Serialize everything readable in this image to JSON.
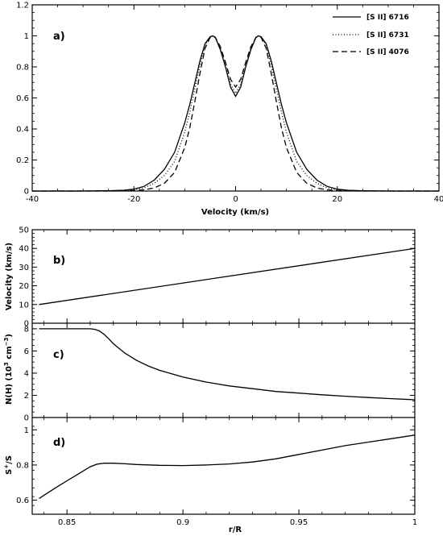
{
  "chart_data": [
    {
      "id": "a",
      "type": "line",
      "panel_label": "a)",
      "xlabel": "Velocity (km/s)",
      "ylabel": "",
      "xlim": [
        -40,
        40
      ],
      "ylim": [
        0,
        1.2
      ],
      "xticks": [
        "-40",
        "-20",
        "0",
        "20",
        "40"
      ],
      "yticks": [
        "0",
        "0.2",
        "0.4",
        "0.6",
        "0.8",
        "1",
        "1.2"
      ],
      "legend_position": "top-right",
      "series": [
        {
          "name": "[S II] 6716",
          "style": "solid",
          "x": [
            -40,
            -30,
            -25,
            -22,
            -20,
            -18,
            -16,
            -14,
            -12,
            -10,
            -9,
            -8,
            -7,
            -6,
            -5,
            -4.5,
            -4,
            -3,
            -2,
            -1,
            0,
            1,
            2,
            3,
            4,
            4.5,
            5,
            6,
            7,
            8,
            9,
            10,
            12,
            14,
            16,
            18,
            20,
            22,
            25,
            30,
            40
          ],
          "y": [
            0,
            0,
            0.002,
            0.005,
            0.012,
            0.03,
            0.07,
            0.14,
            0.25,
            0.44,
            0.56,
            0.7,
            0.84,
            0.95,
            0.995,
            1.0,
            0.99,
            0.91,
            0.8,
            0.67,
            0.61,
            0.67,
            0.8,
            0.91,
            0.99,
            1.0,
            0.995,
            0.95,
            0.84,
            0.7,
            0.56,
            0.44,
            0.25,
            0.14,
            0.07,
            0.03,
            0.012,
            0.005,
            0.002,
            0,
            0
          ]
        },
        {
          "name": "[S II] 6731",
          "style": "dotted",
          "x": [
            -40,
            -30,
            -25,
            -22,
            -20,
            -18,
            -16,
            -14,
            -12,
            -10,
            -9,
            -8,
            -7,
            -6,
            -5,
            -4.5,
            -4,
            -3,
            -2,
            -1,
            0,
            1,
            2,
            3,
            4,
            4.5,
            5,
            6,
            7,
            8,
            9,
            10,
            12,
            14,
            16,
            18,
            20,
            22,
            25,
            30,
            40
          ],
          "y": [
            0,
            0,
            0.001,
            0.003,
            0.008,
            0.02,
            0.05,
            0.1,
            0.19,
            0.38,
            0.51,
            0.66,
            0.81,
            0.94,
            0.99,
            1.0,
            0.99,
            0.92,
            0.81,
            0.69,
            0.63,
            0.69,
            0.81,
            0.92,
            0.99,
            1.0,
            0.99,
            0.94,
            0.81,
            0.66,
            0.51,
            0.38,
            0.19,
            0.1,
            0.05,
            0.02,
            0.008,
            0.003,
            0.001,
            0,
            0
          ]
        },
        {
          "name": "[S II] 4076",
          "style": "dashed",
          "x": [
            -40,
            -30,
            -25,
            -22,
            -20,
            -18,
            -16,
            -14,
            -12,
            -10,
            -9,
            -8,
            -7,
            -6,
            -5,
            -4.5,
            -4,
            -3,
            -2,
            -1,
            0,
            1,
            2,
            3,
            4,
            4.5,
            5,
            6,
            7,
            8,
            9,
            10,
            12,
            14,
            16,
            18,
            20,
            22,
            25,
            30,
            40
          ],
          "y": [
            0,
            0,
            0,
            0.001,
            0.003,
            0.008,
            0.02,
            0.05,
            0.12,
            0.28,
            0.41,
            0.58,
            0.76,
            0.92,
            0.99,
            1.0,
            0.99,
            0.93,
            0.83,
            0.72,
            0.67,
            0.72,
            0.83,
            0.93,
            0.99,
            1.0,
            0.99,
            0.92,
            0.76,
            0.58,
            0.41,
            0.28,
            0.12,
            0.05,
            0.02,
            0.008,
            0.003,
            0.001,
            0,
            0,
            0
          ]
        }
      ]
    },
    {
      "id": "b",
      "type": "line",
      "panel_label": "b)",
      "xlabel": "",
      "ylabel": "Velocity (km/s)",
      "xlim": [
        0.835,
        1.0
      ],
      "ylim": [
        0,
        50
      ],
      "yticks": [
        "0",
        "10",
        "20",
        "30",
        "40",
        "50"
      ],
      "series": [
        {
          "style": "solid",
          "x": [
            0.838,
            1.0
          ],
          "y": [
            10,
            40
          ]
        }
      ]
    },
    {
      "id": "c",
      "type": "line",
      "panel_label": "c)",
      "xlabel": "",
      "ylabel_main": "N(H) (10",
      "ylabel_exp1": "3",
      "ylabel_mid": " cm",
      "ylabel_exp2": "−3",
      "ylabel_end": ")",
      "xlim": [
        0.835,
        1.0
      ],
      "ylim": [
        0,
        8.5
      ],
      "yticks": [
        "0",
        "2",
        "4",
        "6",
        "8"
      ],
      "series": [
        {
          "style": "solid",
          "x": [
            0.838,
            0.85,
            0.86,
            0.862,
            0.864,
            0.866,
            0.868,
            0.87,
            0.875,
            0.88,
            0.885,
            0.89,
            0.9,
            0.91,
            0.92,
            0.93,
            0.94,
            0.95,
            0.96,
            0.97,
            0.98,
            0.99,
            1.0
          ],
          "y": [
            8,
            8,
            8,
            7.95,
            7.8,
            7.5,
            7.1,
            6.65,
            5.8,
            5.15,
            4.65,
            4.25,
            3.65,
            3.2,
            2.85,
            2.6,
            2.35,
            2.2,
            2.05,
            1.92,
            1.8,
            1.7,
            1.6
          ]
        }
      ]
    },
    {
      "id": "d",
      "type": "line",
      "panel_label": "d)",
      "xlabel": "r/R",
      "ylabel_main": "S",
      "ylabel_sup": "+",
      "ylabel_end": "/S",
      "xlim": [
        0.835,
        1.0
      ],
      "ylim": [
        0.52,
        1.07
      ],
      "yticks": [
        "0.6",
        "0.8",
        "1"
      ],
      "xticks": [
        "0.85",
        "0.9",
        "0.95",
        "1"
      ],
      "series": [
        {
          "style": "solid",
          "x": [
            0.838,
            0.845,
            0.85,
            0.855,
            0.86,
            0.863,
            0.866,
            0.87,
            0.875,
            0.88,
            0.89,
            0.9,
            0.91,
            0.92,
            0.93,
            0.94,
            0.95,
            0.96,
            0.97,
            0.98,
            0.99,
            1.0
          ],
          "y": [
            0.61,
            0.67,
            0.71,
            0.75,
            0.79,
            0.805,
            0.81,
            0.81,
            0.807,
            0.803,
            0.798,
            0.797,
            0.8,
            0.806,
            0.817,
            0.835,
            0.86,
            0.885,
            0.91,
            0.93,
            0.95,
            0.97
          ]
        }
      ]
    }
  ]
}
